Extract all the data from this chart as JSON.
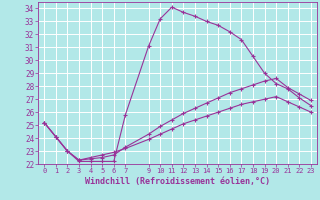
{
  "background_color": "#b2e8e8",
  "grid_color": "#ffffff",
  "line_color": "#993399",
  "xlabel": "Windchill (Refroidissement éolien,°C)",
  "xlim": [
    -0.5,
    23.5
  ],
  "ylim": [
    22,
    34.5
  ],
  "yticks": [
    22,
    23,
    24,
    25,
    26,
    27,
    28,
    29,
    30,
    31,
    32,
    33,
    34
  ],
  "xticks": [
    0,
    1,
    2,
    3,
    4,
    5,
    6,
    7,
    9,
    10,
    11,
    12,
    13,
    14,
    15,
    16,
    17,
    18,
    19,
    20,
    21,
    22,
    23
  ],
  "series1_x": [
    0,
    1,
    2,
    3,
    4,
    5,
    6,
    7,
    9,
    10,
    11,
    12,
    13,
    14,
    15,
    16,
    17,
    18,
    19,
    20,
    21,
    22,
    23
  ],
  "series1_y": [
    25.2,
    24.1,
    23.0,
    22.2,
    22.2,
    22.2,
    22.2,
    25.8,
    31.1,
    33.2,
    34.1,
    33.7,
    33.4,
    33.0,
    32.7,
    32.2,
    31.6,
    30.3,
    29.0,
    28.2,
    27.8,
    27.1,
    26.5
  ],
  "series2_x": [
    0,
    1,
    2,
    3,
    4,
    5,
    6,
    7,
    9,
    10,
    11,
    12,
    13,
    14,
    15,
    16,
    17,
    18,
    19,
    20,
    21,
    22,
    23
  ],
  "series2_y": [
    25.2,
    24.1,
    23.0,
    22.3,
    22.4,
    22.5,
    22.7,
    23.3,
    24.3,
    24.9,
    25.4,
    25.9,
    26.3,
    26.7,
    27.1,
    27.5,
    27.8,
    28.1,
    28.4,
    28.6,
    27.9,
    27.4,
    26.9
  ],
  "series3_x": [
    0,
    1,
    2,
    3,
    4,
    5,
    6,
    7,
    9,
    10,
    11,
    12,
    13,
    14,
    15,
    16,
    17,
    18,
    19,
    20,
    21,
    22,
    23
  ],
  "series3_y": [
    25.2,
    24.1,
    23.0,
    22.3,
    22.5,
    22.7,
    22.9,
    23.2,
    23.9,
    24.3,
    24.7,
    25.1,
    25.4,
    25.7,
    26.0,
    26.3,
    26.6,
    26.8,
    27.0,
    27.2,
    26.8,
    26.4,
    26.0
  ]
}
